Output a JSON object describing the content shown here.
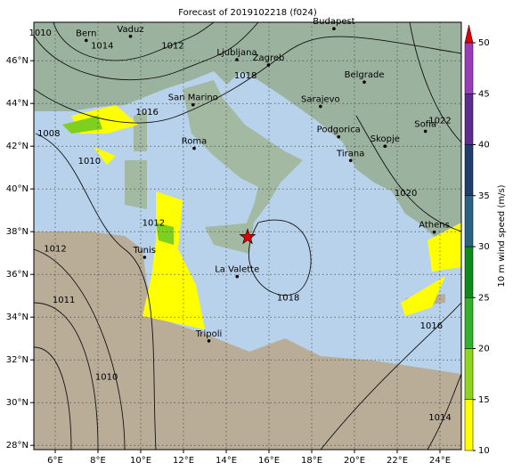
{
  "title": "Forecast of 2019102218 (f024)",
  "map": {
    "xlim": [
      5,
      25
    ],
    "ylim": [
      27.8,
      47.8
    ],
    "xticks": [
      {
        "value": 6,
        "label": "6°E"
      },
      {
        "value": 8,
        "label": "8°E"
      },
      {
        "value": 10,
        "label": "10°E"
      },
      {
        "value": 12,
        "label": "12°E"
      },
      {
        "value": 14,
        "label": "14°E"
      },
      {
        "value": 16,
        "label": "16°E"
      },
      {
        "value": 18,
        "label": "18°E"
      },
      {
        "value": 20,
        "label": "20°E"
      },
      {
        "value": 22,
        "label": "22°E"
      },
      {
        "value": 24,
        "label": "24°E"
      }
    ],
    "yticks": [
      {
        "value": 28,
        "label": "28°N"
      },
      {
        "value": 30,
        "label": "30°N"
      },
      {
        "value": 32,
        "label": "32°N"
      },
      {
        "value": 34,
        "label": "34°N"
      },
      {
        "value": 36,
        "label": "36°N"
      },
      {
        "value": 38,
        "label": "38°N"
      },
      {
        "value": 40,
        "label": "40°N"
      },
      {
        "value": 42,
        "label": "42°N"
      },
      {
        "value": 44,
        "label": "44°N"
      },
      {
        "value": 46,
        "label": "46°N"
      }
    ],
    "grid": true,
    "cities": [
      {
        "name": "Bern",
        "lon": 7.45,
        "lat": 46.95
      },
      {
        "name": "Vaduz",
        "lon": 9.52,
        "lat": 47.14
      },
      {
        "name": "Budapest",
        "lon": 19.04,
        "lat": 47.5
      },
      {
        "name": "Ljubljana",
        "lon": 14.5,
        "lat": 46.05
      },
      {
        "name": "Zagreb",
        "lon": 15.98,
        "lat": 45.8
      },
      {
        "name": "Belgrade",
        "lon": 20.46,
        "lat": 45.0
      },
      {
        "name": "San Marino",
        "lon": 12.45,
        "lat": 43.94
      },
      {
        "name": "Sarajevo",
        "lon": 18.41,
        "lat": 43.86
      },
      {
        "name": "Podgorica",
        "lon": 19.26,
        "lat": 42.44
      },
      {
        "name": "Sofia",
        "lon": 23.32,
        "lat": 42.7
      },
      {
        "name": "Skopje",
        "lon": 21.43,
        "lat": 42.0
      },
      {
        "name": "Roma",
        "lon": 12.5,
        "lat": 41.9
      },
      {
        "name": "Tirana",
        "lon": 19.82,
        "lat": 41.33
      },
      {
        "name": "Athens",
        "lon": 23.73,
        "lat": 37.98
      },
      {
        "name": "Tunis",
        "lon": 10.18,
        "lat": 36.8
      },
      {
        "name": "La Valette",
        "lon": 14.51,
        "lat": 35.9
      },
      {
        "name": "Tripoli",
        "lon": 13.19,
        "lat": 32.89
      }
    ],
    "event_marker": {
      "lon": 15.0,
      "lat": 37.75,
      "color": "#e00000"
    },
    "isobar_labels": [
      {
        "label": "1010",
        "lon": 5.3,
        "lat": 47.3
      },
      {
        "label": "1014",
        "lon": 8.2,
        "lat": 46.7
      },
      {
        "label": "1012",
        "lon": 11.5,
        "lat": 46.7
      },
      {
        "label": "1018",
        "lon": 14.9,
        "lat": 45.3
      },
      {
        "label": "1016",
        "lon": 10.3,
        "lat": 43.6
      },
      {
        "label": "1008",
        "lon": 5.7,
        "lat": 42.6
      },
      {
        "label": "1010",
        "lon": 7.6,
        "lat": 41.3
      },
      {
        "label": "1012",
        "lon": 10.6,
        "lat": 38.4
      },
      {
        "label": "1012",
        "lon": 6.0,
        "lat": 37.2
      },
      {
        "label": "1011",
        "lon": 6.4,
        "lat": 34.8
      },
      {
        "label": "1010",
        "lon": 8.4,
        "lat": 31.2
      },
      {
        "label": "1018",
        "lon": 16.9,
        "lat": 34.9
      },
      {
        "label": "1016",
        "lon": 23.6,
        "lat": 33.6
      },
      {
        "label": "1014",
        "lon": 24.0,
        "lat": 29.3
      },
      {
        "label": "1020",
        "lon": 22.4,
        "lat": 39.8
      },
      {
        "label": "1022",
        "lon": 24.0,
        "lat": 43.2
      }
    ]
  },
  "colorbar": {
    "label": "10 m wind speed (m/s)",
    "lim": [
      10,
      50
    ],
    "ticks": [
      10,
      15,
      20,
      25,
      30,
      35,
      40,
      45,
      50
    ],
    "colors": [
      "#ffff00",
      "#8fd41e",
      "#33b02c",
      "#0d8a1a",
      "#2b6283",
      "#1f3e6b",
      "#5e2c8c",
      "#9b3cb7"
    ],
    "extend_color": "#e00000"
  }
}
